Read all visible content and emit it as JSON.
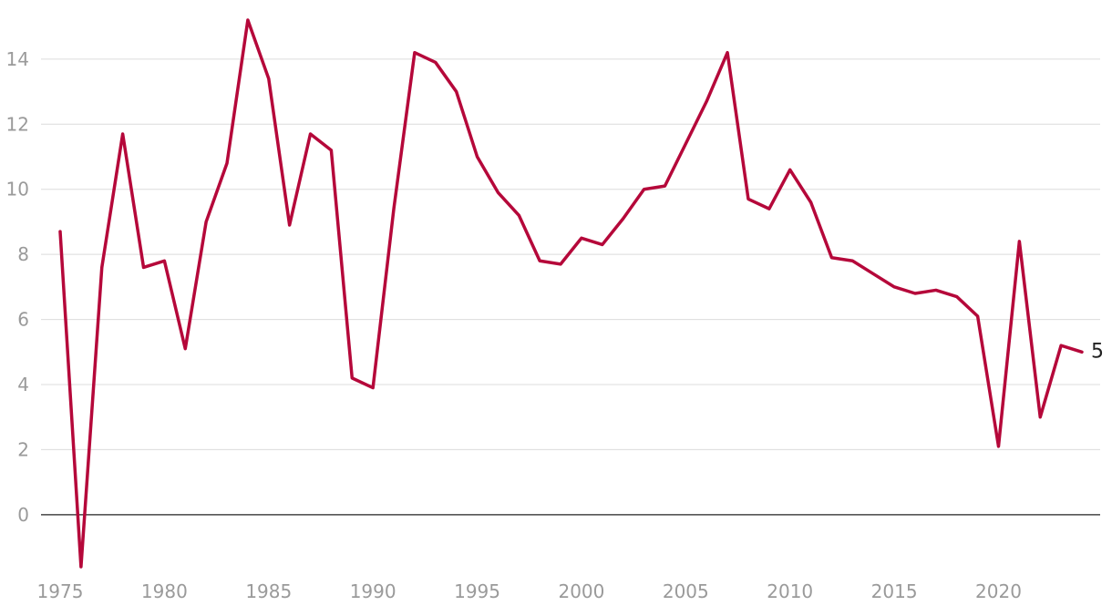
{
  "chart_data": {
    "type": "line",
    "title": "",
    "xlabel": "",
    "ylabel": "",
    "xlim": [
      1975,
      2024
    ],
    "ylim": [
      -1.6,
      15.2
    ],
    "grid": true,
    "legend": "none",
    "x_ticks": [
      1975,
      1980,
      1985,
      1990,
      1995,
      2000,
      2005,
      2010,
      2015,
      2020
    ],
    "y_ticks": [
      0,
      2,
      4,
      6,
      8,
      10,
      12,
      14
    ],
    "x_tick_labels": [
      "1975",
      "1980",
      "1985",
      "1990",
      "1995",
      "2000",
      "2005",
      "2010",
      "2015",
      "2020"
    ],
    "y_tick_labels": [
      "0",
      "2",
      "4",
      "6",
      "8",
      "10",
      "12",
      "14"
    ],
    "end_label": "5",
    "x": [
      1975,
      1976,
      1977,
      1978,
      1979,
      1980,
      1981,
      1982,
      1983,
      1984,
      1985,
      1986,
      1987,
      1988,
      1989,
      1990,
      1991,
      1992,
      1993,
      1994,
      1995,
      1996,
      1997,
      1998,
      1999,
      2000,
      2001,
      2002,
      2003,
      2004,
      2005,
      2006,
      2007,
      2008,
      2009,
      2010,
      2011,
      2012,
      2013,
      2014,
      2015,
      2016,
      2017,
      2018,
      2019,
      2020,
      2021,
      2022,
      2023,
      2024
    ],
    "series": [
      {
        "color": "#b5083a",
        "values": [
          8.7,
          -1.6,
          7.6,
          11.7,
          7.6,
          7.8,
          5.1,
          9.0,
          10.8,
          15.2,
          13.4,
          8.9,
          11.7,
          11.2,
          4.2,
          3.9,
          9.4,
          14.2,
          13.9,
          13.0,
          11.0,
          9.9,
          9.2,
          7.8,
          7.7,
          8.5,
          8.3,
          9.1,
          10.0,
          10.1,
          11.4,
          12.7,
          14.2,
          9.7,
          9.4,
          10.6,
          9.6,
          7.9,
          7.8,
          7.4,
          7.0,
          6.8,
          6.9,
          6.7,
          6.1,
          2.1,
          8.4,
          3.0,
          5.2,
          5.0
        ]
      }
    ]
  }
}
